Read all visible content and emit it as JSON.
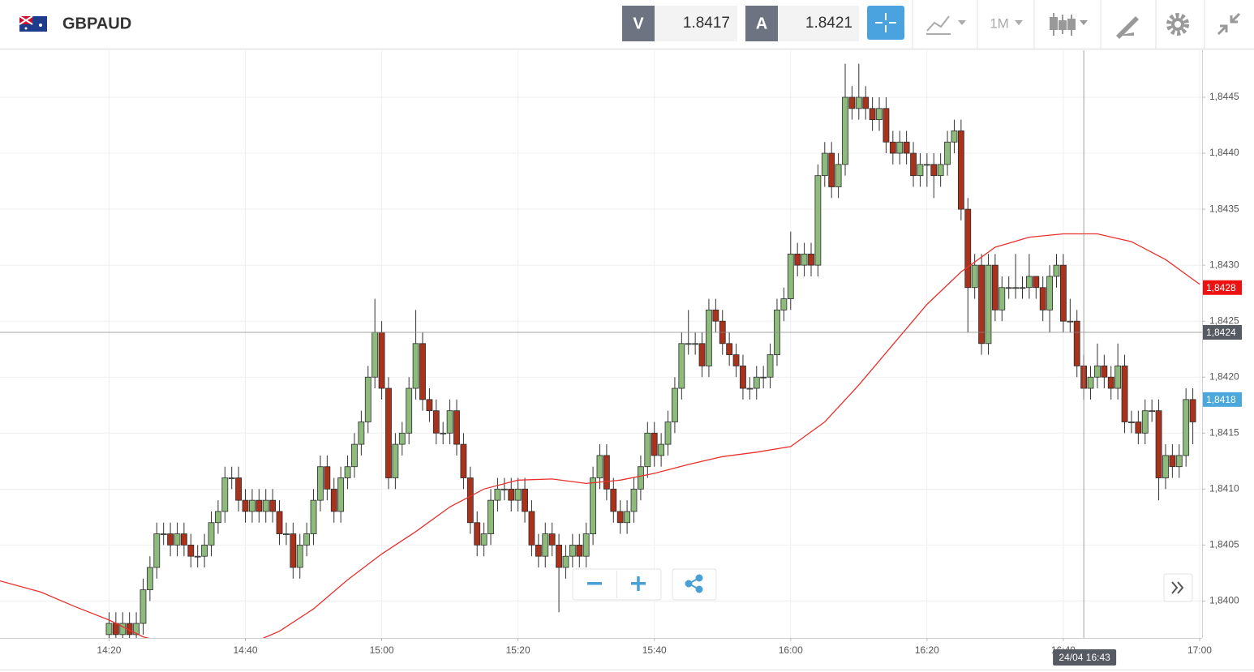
{
  "header": {
    "symbol": "GBPAUD",
    "sell_label": "V",
    "sell_price": 1.8417,
    "buy_label": "A",
    "buy_price": 1.8421,
    "timeframe": "1M"
  },
  "chart_data": {
    "type": "candlestick",
    "x": [
      860,
      861,
      862,
      863,
      864,
      865,
      866,
      867,
      868,
      869,
      870,
      871,
      872,
      873,
      874,
      875,
      876,
      877,
      878,
      879,
      880,
      881,
      882,
      883,
      884,
      885,
      886,
      887,
      888,
      889,
      890,
      891,
      892,
      893,
      894,
      895,
      896,
      897,
      898,
      899,
      900,
      901,
      902,
      903,
      904,
      905,
      906,
      907,
      908,
      909,
      910,
      911,
      912,
      913,
      914,
      915,
      916,
      917,
      918,
      919,
      920,
      921,
      922,
      923,
      924,
      925,
      926,
      927,
      928,
      929,
      930,
      931,
      932,
      933,
      934,
      935,
      936,
      937,
      938,
      939,
      940,
      941,
      942,
      943,
      944,
      945,
      946,
      947,
      948,
      949,
      950,
      951,
      952,
      953,
      954,
      955,
      956,
      957,
      958,
      959,
      960,
      961,
      962,
      963,
      964,
      965,
      966,
      967,
      968,
      969,
      970,
      971,
      972,
      973,
      974,
      975,
      976,
      977,
      978,
      979,
      980,
      981,
      982,
      983,
      984,
      985,
      986,
      987,
      988,
      989,
      990,
      991,
      992,
      993,
      994,
      995,
      996,
      997,
      998,
      999,
      1000,
      1001,
      1002,
      1003,
      1004,
      1005,
      1006,
      1007,
      1008,
      1009,
      1010,
      1011,
      1012,
      1013,
      1014,
      1015,
      1016,
      1017,
      1018,
      1019
    ],
    "open": [
      1.8397,
      1.8398,
      1.8397,
      1.8398,
      1.8397,
      1.8398,
      1.8401,
      1.8403,
      1.8406,
      1.8406,
      1.8405,
      1.8406,
      1.8405,
      1.8404,
      1.8404,
      1.8405,
      1.8407,
      1.8408,
      1.8411,
      1.8411,
      1.8409,
      1.8408,
      1.8409,
      1.8408,
      1.8409,
      1.8408,
      1.8406,
      1.8406,
      1.8403,
      1.8405,
      1.8406,
      1.8409,
      1.8412,
      1.841,
      1.8408,
      1.8411,
      1.8412,
      1.8414,
      1.8416,
      1.842,
      1.8424,
      1.8419,
      1.8411,
      1.8414,
      1.8415,
      1.8419,
      1.8423,
      1.8418,
      1.8417,
      1.8415,
      1.8415,
      1.8417,
      1.8414,
      1.8411,
      1.8407,
      1.8405,
      1.8406,
      1.8409,
      1.841,
      1.841,
      1.8409,
      1.841,
      1.8408,
      1.8405,
      1.8404,
      1.8406,
      1.8405,
      1.8403,
      1.8404,
      1.8405,
      1.8404,
      1.8406,
      1.8411,
      1.8413,
      1.841,
      1.8408,
      1.8407,
      1.8408,
      1.841,
      1.8412,
      1.8415,
      1.8413,
      1.8414,
      1.8416,
      1.8419,
      1.8423,
      1.8423,
      1.8423,
      1.8421,
      1.8426,
      1.8425,
      1.8423,
      1.8422,
      1.8421,
      1.8419,
      1.8419,
      1.842,
      1.842,
      1.8422,
      1.8426,
      1.8427,
      1.8431,
      1.843,
      1.8431,
      1.843,
      1.8438,
      1.844,
      1.8437,
      1.8439,
      1.8445,
      1.8444,
      1.8445,
      1.8444,
      1.8443,
      1.8444,
      1.8441,
      1.844,
      1.8441,
      1.844,
      1.8438,
      1.8439,
      1.8439,
      1.8438,
      1.8439,
      1.8441,
      1.8442,
      1.8435,
      1.8428,
      1.843,
      1.8423,
      1.843,
      1.8426,
      1.8428,
      1.8428,
      1.8428,
      1.8428,
      1.8429,
      1.8428,
      1.8426,
      1.8429,
      1.843,
      1.8425,
      1.8425,
      1.8421,
      1.8419,
      1.842,
      1.8421,
      1.842,
      1.8419,
      1.8421,
      1.8416,
      1.8416,
      1.8415,
      1.8417,
      1.8417,
      1.8411,
      1.8413,
      1.8412,
      1.8413,
      1.8418
    ],
    "high": [
      1.8399,
      1.8399,
      1.8399,
      1.8399,
      1.8399,
      1.8402,
      1.8404,
      1.8407,
      1.8407,
      1.8407,
      1.8407,
      1.8407,
      1.8406,
      1.8405,
      1.8406,
      1.8408,
      1.8409,
      1.8412,
      1.8412,
      1.8412,
      1.841,
      1.841,
      1.841,
      1.841,
      1.841,
      1.8409,
      1.8407,
      1.8407,
      1.8406,
      1.8407,
      1.841,
      1.8413,
      1.8413,
      1.8411,
      1.8412,
      1.8413,
      1.8415,
      1.8417,
      1.8421,
      1.8427,
      1.8425,
      1.842,
      1.8415,
      1.8416,
      1.842,
      1.8426,
      1.8424,
      1.8419,
      1.8418,
      1.8416,
      1.8418,
      1.8418,
      1.8415,
      1.8412,
      1.8408,
      1.8407,
      1.841,
      1.8411,
      1.8411,
      1.8411,
      1.8411,
      1.8411,
      1.8409,
      1.8406,
      1.8407,
      1.8407,
      1.8406,
      1.8405,
      1.8406,
      1.8406,
      1.8407,
      1.8412,
      1.8414,
      1.8414,
      1.8411,
      1.8409,
      1.8409,
      1.8411,
      1.8413,
      1.8416,
      1.8416,
      1.8415,
      1.8417,
      1.842,
      1.8424,
      1.8426,
      1.8424,
      1.8424,
      1.8427,
      1.8427,
      1.8426,
      1.8424,
      1.8423,
      1.8422,
      1.842,
      1.8421,
      1.8421,
      1.8423,
      1.8427,
      1.8428,
      1.8433,
      1.8432,
      1.8432,
      1.8432,
      1.8439,
      1.8441,
      1.8441,
      1.844,
      1.8448,
      1.8446,
      1.8448,
      1.8446,
      1.8445,
      1.8445,
      1.8445,
      1.8442,
      1.8442,
      1.8442,
      1.8441,
      1.844,
      1.844,
      1.844,
      1.844,
      1.8442,
      1.8443,
      1.8443,
      1.8436,
      1.8431,
      1.8431,
      1.8431,
      1.8431,
      1.8429,
      1.8429,
      1.8431,
      1.8429,
      1.8431,
      1.8429,
      1.8429,
      1.843,
      1.8431,
      1.8431,
      1.8427,
      1.8426,
      1.8422,
      1.8421,
      1.8423,
      1.8422,
      1.8421,
      1.8423,
      1.8422,
      1.8417,
      1.8417,
      1.8418,
      1.8418,
      1.8418,
      1.8414,
      1.8414,
      1.8414,
      1.8419,
      1.8419
    ],
    "low": [
      1.8396,
      1.8396,
      1.8396,
      1.8396,
      1.8396,
      1.8397,
      1.84,
      1.8402,
      1.8405,
      1.8404,
      1.8404,
      1.8404,
      1.8403,
      1.8403,
      1.8403,
      1.8404,
      1.8406,
      1.8407,
      1.841,
      1.8408,
      1.8407,
      1.8407,
      1.8407,
      1.8407,
      1.8407,
      1.8405,
      1.8405,
      1.8402,
      1.8402,
      1.8404,
      1.8405,
      1.8408,
      1.8409,
      1.8407,
      1.8407,
      1.841,
      1.8411,
      1.8413,
      1.8415,
      1.8419,
      1.8418,
      1.841,
      1.841,
      1.8413,
      1.8414,
      1.8418,
      1.8417,
      1.8416,
      1.8414,
      1.8414,
      1.8414,
      1.8413,
      1.841,
      1.8406,
      1.8404,
      1.8404,
      1.8405,
      1.8408,
      1.8409,
      1.8408,
      1.8408,
      1.8407,
      1.8404,
      1.8403,
      1.8403,
      1.8404,
      1.8399,
      1.8402,
      1.8403,
      1.8403,
      1.8403,
      1.8405,
      1.841,
      1.8409,
      1.8407,
      1.8406,
      1.8406,
      1.8407,
      1.8409,
      1.8411,
      1.8412,
      1.8412,
      1.8413,
      1.8415,
      1.8418,
      1.8422,
      1.8422,
      1.842,
      1.842,
      1.8424,
      1.8422,
      1.8421,
      1.842,
      1.8418,
      1.8418,
      1.8418,
      1.8419,
      1.8419,
      1.8421,
      1.8425,
      1.8426,
      1.8429,
      1.8429,
      1.8429,
      1.8429,
      1.8437,
      1.8436,
      1.8436,
      1.8438,
      1.8443,
      1.8443,
      1.8443,
      1.8442,
      1.8442,
      1.844,
      1.8439,
      1.8439,
      1.8439,
      1.8437,
      1.8437,
      1.8437,
      1.8436,
      1.8437,
      1.8438,
      1.844,
      1.8434,
      1.8424,
      1.8427,
      1.8422,
      1.8422,
      1.8425,
      1.8425,
      1.8427,
      1.8427,
      1.8427,
      1.8427,
      1.8427,
      1.8425,
      1.8424,
      1.8428,
      1.8424,
      1.8424,
      1.842,
      1.8418,
      1.8418,
      1.8419,
      1.8419,
      1.8418,
      1.8418,
      1.8415,
      1.8415,
      1.8414,
      1.8414,
      1.8416,
      1.8409,
      1.841,
      1.8411,
      1.8411,
      1.8412,
      1.8414
    ],
    "close": [
      1.8398,
      1.8397,
      1.8398,
      1.8397,
      1.8398,
      1.8401,
      1.8403,
      1.8406,
      1.8406,
      1.8405,
      1.8406,
      1.8405,
      1.8404,
      1.8404,
      1.8405,
      1.8407,
      1.8408,
      1.8411,
      1.8411,
      1.8409,
      1.8408,
      1.8409,
      1.8408,
      1.8409,
      1.8408,
      1.8406,
      1.8406,
      1.8403,
      1.8405,
      1.8406,
      1.8409,
      1.8412,
      1.841,
      1.8408,
      1.8411,
      1.8412,
      1.8414,
      1.8416,
      1.842,
      1.8424,
      1.8419,
      1.8411,
      1.8414,
      1.8415,
      1.8419,
      1.8423,
      1.8418,
      1.8417,
      1.8415,
      1.8415,
      1.8417,
      1.8414,
      1.8411,
      1.8407,
      1.8405,
      1.8406,
      1.8409,
      1.841,
      1.841,
      1.8409,
      1.841,
      1.8408,
      1.8405,
      1.8404,
      1.8406,
      1.8405,
      1.8403,
      1.8404,
      1.8405,
      1.8404,
      1.8406,
      1.8411,
      1.8413,
      1.841,
      1.8408,
      1.8407,
      1.8408,
      1.841,
      1.8412,
      1.8415,
      1.8413,
      1.8414,
      1.8416,
      1.8419,
      1.8423,
      1.8423,
      1.8423,
      1.8421,
      1.8426,
      1.8425,
      1.8423,
      1.8422,
      1.8421,
      1.8419,
      1.8419,
      1.842,
      1.842,
      1.8422,
      1.8426,
      1.8427,
      1.8431,
      1.843,
      1.8431,
      1.843,
      1.8438,
      1.844,
      1.8437,
      1.8439,
      1.8445,
      1.8444,
      1.8445,
      1.8444,
      1.8443,
      1.8444,
      1.8441,
      1.844,
      1.8441,
      1.844,
      1.8438,
      1.8439,
      1.8439,
      1.8438,
      1.8439,
      1.8441,
      1.8442,
      1.8435,
      1.8428,
      1.843,
      1.8423,
      1.843,
      1.8426,
      1.8428,
      1.8428,
      1.8428,
      1.8428,
      1.8429,
      1.8428,
      1.8426,
      1.8429,
      1.843,
      1.8425,
      1.8425,
      1.8421,
      1.8419,
      1.842,
      1.8421,
      1.842,
      1.8419,
      1.8421,
      1.8416,
      1.8416,
      1.8415,
      1.8417,
      1.8417,
      1.8411,
      1.8413,
      1.8412,
      1.8413,
      1.8418,
      1.8416
    ],
    "up_color": "#8dbb7c",
    "down_color": "#a8321c",
    "ma": {
      "color": "#e8302c",
      "x": [
        844,
        850,
        855,
        860,
        865,
        870,
        875,
        880,
        885,
        890,
        895,
        900,
        905,
        910,
        915,
        920,
        925,
        930,
        935,
        940,
        945,
        950,
        955,
        960,
        965,
        970,
        975,
        980,
        985,
        990,
        995,
        1000,
        1005,
        1010,
        1015,
        1020
      ],
      "values": [
        1.84018,
        1.84008,
        1.83995,
        1.83983,
        1.83968,
        1.8396,
        1.83955,
        1.8396,
        1.83973,
        1.83993,
        1.84019,
        1.84042,
        1.84062,
        1.84084,
        1.841,
        1.84108,
        1.84109,
        1.84105,
        1.84108,
        1.84114,
        1.84122,
        1.84129,
        1.84133,
        1.84138,
        1.8416,
        1.84193,
        1.84229,
        1.84265,
        1.84294,
        1.84316,
        1.84325,
        1.84328,
        1.84328,
        1.84321,
        1.84305,
        1.84283
      ]
    },
    "xlim": [
      844,
      1020.36
    ],
    "ylim": [
      1.83967,
      1.84492
    ],
    "xticks": [
      {
        "value": 860,
        "label": "14:20"
      },
      {
        "value": 880,
        "label": "14:40"
      },
      {
        "value": 900,
        "label": "15:00"
      },
      {
        "value": 920,
        "label": "15:20"
      },
      {
        "value": 940,
        "label": "15:40"
      },
      {
        "value": 960,
        "label": "16:00"
      },
      {
        "value": 980,
        "label": "16:20"
      },
      {
        "value": 1000,
        "label": "16:40"
      },
      {
        "value": 1020,
        "label": "17:00"
      }
    ],
    "yticks": [
      {
        "value": 1.84,
        "label": "1,8400"
      },
      {
        "value": 1.8405,
        "label": "1,8405"
      },
      {
        "value": 1.841,
        "label": "1,8410"
      },
      {
        "value": 1.8415,
        "label": "1,8415"
      },
      {
        "value": 1.842,
        "label": "1,8420"
      },
      {
        "value": 1.8425,
        "label": "1,8425"
      },
      {
        "value": 1.843,
        "label": "1,8430"
      },
      {
        "value": 1.8435,
        "label": "1,8435"
      },
      {
        "value": 1.844,
        "label": "1,8440"
      },
      {
        "value": 1.8445,
        "label": "1,8445"
      }
    ],
    "grid": true,
    "markers": [
      {
        "value": 1.8428,
        "label": "1,8428",
        "color": "#ee1111"
      },
      {
        "value": 1.8418,
        "label": "1,8418",
        "color": "#4aa8dc"
      }
    ],
    "crosshair": {
      "x": 1003,
      "y": 1.8424,
      "x_label": "24/04 16:43",
      "y_label": "1,8424",
      "color": "#555a63"
    }
  }
}
